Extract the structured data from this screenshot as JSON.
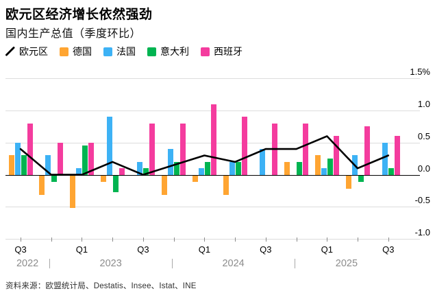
{
  "header": {
    "title": "欧元区经济增长依然强劲",
    "subtitle": "国内生产总值（季度环比）"
  },
  "legend": {
    "items": [
      {
        "label": "欧元区",
        "color": "#000000",
        "marker": "line"
      },
      {
        "label": "德国",
        "color": "#FFA532",
        "marker": "square"
      },
      {
        "label": "法国",
        "color": "#3DB2F5",
        "marker": "square"
      },
      {
        "label": "意大利",
        "color": "#00B451",
        "marker": "square"
      },
      {
        "label": "西班牙",
        "color": "#F43C9E",
        "marker": "square"
      }
    ]
  },
  "chart_data": {
    "type": "bar",
    "title": "欧元区经济增长依然强劲",
    "subtitle": "国内生产总值（季度环比）",
    "unit": "%",
    "categories": [
      "2022 Q3",
      "2022 Q4",
      "2023 Q1",
      "2023 Q2",
      "2023 Q3",
      "2023 Q4",
      "2024 Q1",
      "2024 Q2",
      "2024 Q3",
      "2024 Q4",
      "2025 Q1",
      "2025 Q2",
      "2025 Q3"
    ],
    "series": [
      {
        "name": "欧元区",
        "type": "line",
        "color": "#000000",
        "values": [
          0.4,
          0.0,
          0.0,
          0.2,
          0.0,
          0.15,
          0.3,
          0.2,
          0.4,
          0.4,
          0.6,
          0.1,
          0.3
        ]
      },
      {
        "name": "德国",
        "type": "bar",
        "color": "#FFA532",
        "values": [
          0.3,
          -0.3,
          -0.5,
          -0.1,
          0.0,
          -0.3,
          -0.1,
          -0.3,
          0.0,
          0.2,
          0.3,
          -0.2,
          0.0
        ]
      },
      {
        "name": "法国",
        "type": "bar",
        "color": "#3DB2F5",
        "values": [
          0.5,
          0.3,
          0.1,
          0.9,
          0.2,
          0.4,
          0.1,
          0.2,
          0.4,
          0.0,
          0.1,
          0.3,
          0.5
        ]
      },
      {
        "name": "意大利",
        "type": "bar",
        "color": "#00B451",
        "values": [
          0.3,
          -0.1,
          0.45,
          -0.25,
          0.1,
          0.2,
          0.2,
          0.2,
          0.0,
          0.2,
          0.25,
          -0.1,
          0.1
        ]
      },
      {
        "name": "西班牙",
        "type": "bar",
        "color": "#F43C9E",
        "values": [
          0.8,
          0.5,
          0.5,
          0.1,
          0.8,
          0.8,
          1.1,
          0.9,
          0.8,
          0.8,
          0.6,
          0.75,
          0.6
        ]
      }
    ],
    "ylim": [
      -1.0,
      1.5
    ],
    "y_ticks": [
      1.5,
      1.0,
      0.5,
      0.0,
      -0.5,
      -1.0
    ],
    "y_tick_labels": [
      "1.5%",
      "1.0",
      "0.5",
      "0.0",
      "-0.5",
      "-1.0"
    ],
    "x_tick_labels": [
      "Q3",
      "",
      "Q1",
      "",
      "Q3",
      "",
      "Q1",
      "",
      "Q3",
      "",
      "Q1",
      "",
      "Q3"
    ],
    "year_bands": [
      {
        "label": "2022",
        "from": 0,
        "to": 1
      },
      {
        "label": "2023",
        "from": 2,
        "to": 5
      },
      {
        "label": "2024",
        "from": 6,
        "to": 9
      },
      {
        "label": "2025",
        "from": 10,
        "to": 12
      }
    ],
    "grid": true,
    "legend_position": "top"
  },
  "footer": {
    "source": "资料来源：欧盟统计局、Destatis、Insee、Istat、INE"
  }
}
